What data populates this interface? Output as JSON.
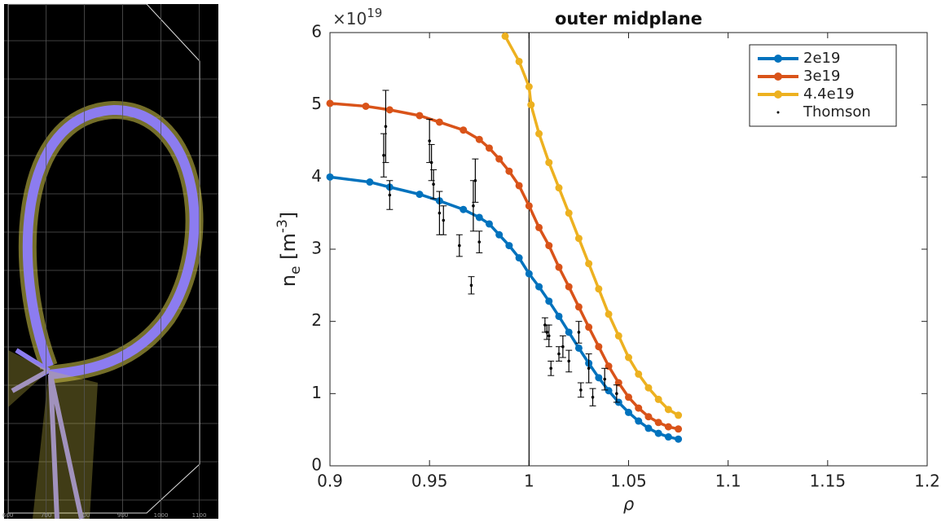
{
  "chart_data": [
    {
      "type": "mesh",
      "xlim": [
        590,
        1150
      ],
      "xticks": [
        600,
        700,
        800,
        900,
        1000,
        1100
      ],
      "grid": true
    },
    {
      "type": "line",
      "title": "outer midplane",
      "xlabel": "ρ",
      "ylabel": [
        "n",
        "e",
        " [m",
        "-3",
        "]"
      ],
      "y_scale_label": "×10",
      "y_scale_exponent": "19",
      "xlim": [
        0.9,
        1.2
      ],
      "xticks": [
        0.9,
        0.95,
        1,
        1.05,
        1.1,
        1.15,
        1.2
      ],
      "ylim": [
        0,
        6
      ],
      "yticks": [
        0,
        1,
        2,
        3,
        4,
        5,
        6
      ],
      "vline": 1,
      "legend": "top-right",
      "series": [
        {
          "name": "2e19",
          "color": "#0072bd",
          "x": [
            0.9,
            0.92,
            0.93,
            0.945,
            0.955,
            0.967,
            0.975,
            0.98,
            0.985,
            0.99,
            0.995,
            1.0,
            1.005,
            1.01,
            1.015,
            1.02,
            1.025,
            1.03,
            1.035,
            1.04,
            1.045,
            1.05,
            1.055,
            1.06,
            1.065,
            1.07,
            1.075
          ],
          "values": [
            4.0,
            3.93,
            3.86,
            3.76,
            3.67,
            3.55,
            3.44,
            3.35,
            3.2,
            3.05,
            2.88,
            2.66,
            2.48,
            2.28,
            2.07,
            1.85,
            1.63,
            1.42,
            1.22,
            1.04,
            0.88,
            0.74,
            0.62,
            0.52,
            0.45,
            0.4,
            0.37
          ]
        },
        {
          "name": "3e19",
          "color": "#d95319",
          "x": [
            0.9,
            0.918,
            0.93,
            0.945,
            0.955,
            0.967,
            0.975,
            0.98,
            0.985,
            0.99,
            0.995,
            1.0,
            1.005,
            1.01,
            1.015,
            1.02,
            1.025,
            1.03,
            1.035,
            1.04,
            1.045,
            1.05,
            1.055,
            1.06,
            1.065,
            1.07,
            1.075
          ],
          "values": [
            5.02,
            4.98,
            4.93,
            4.85,
            4.76,
            4.65,
            4.52,
            4.4,
            4.25,
            4.08,
            3.88,
            3.6,
            3.3,
            3.05,
            2.75,
            2.48,
            2.2,
            1.92,
            1.65,
            1.38,
            1.15,
            0.95,
            0.8,
            0.68,
            0.6,
            0.54,
            0.51
          ]
        },
        {
          "name": "4.4e19",
          "color": "#edb120",
          "x": [
            0.988,
            0.995,
            1.0,
            1.001,
            1.005,
            1.01,
            1.015,
            1.02,
            1.025,
            1.03,
            1.035,
            1.04,
            1.045,
            1.05,
            1.055,
            1.06,
            1.065,
            1.07,
            1.075
          ],
          "values": [
            5.95,
            5.6,
            5.25,
            5.0,
            4.6,
            4.2,
            3.85,
            3.5,
            3.15,
            2.8,
            2.45,
            2.1,
            1.8,
            1.5,
            1.27,
            1.08,
            0.92,
            0.78,
            0.7
          ]
        },
        {
          "name": "Thomson",
          "color": "#000000",
          "x": [
            0.927,
            0.928,
            0.93,
            0.95,
            0.951,
            0.952,
            0.955,
            0.957,
            0.965,
            0.972,
            0.973,
            0.975,
            0.971,
            1.008,
            1.009,
            1.01,
            1.011,
            1.015,
            1.017,
            1.02,
            1.025,
            1.026,
            1.03,
            1.032,
            1.038,
            1.044
          ],
          "values": [
            4.3,
            4.7,
            3.75,
            4.5,
            4.2,
            3.9,
            3.5,
            3.4,
            3.05,
            3.6,
            3.95,
            3.1,
            2.5,
            1.95,
            1.85,
            1.8,
            1.35,
            1.55,
            1.65,
            1.45,
            1.85,
            1.05,
            1.35,
            0.95,
            1.2,
            1.0
          ],
          "errors": [
            0.3,
            0.5,
            0.2,
            0.3,
            0.25,
            0.2,
            0.3,
            0.2,
            0.15,
            0.35,
            0.3,
            0.15,
            0.12,
            0.1,
            0.1,
            0.15,
            0.1,
            0.1,
            0.15,
            0.15,
            0.15,
            0.1,
            0.2,
            0.12,
            0.15,
            0.12
          ]
        }
      ]
    }
  ]
}
